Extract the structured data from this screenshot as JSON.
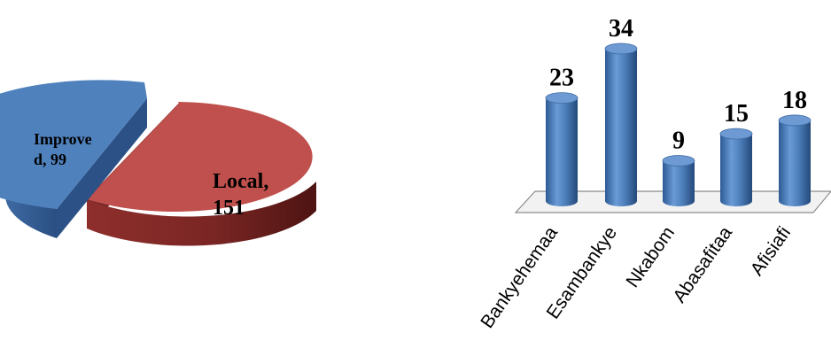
{
  "chart_data": [
    {
      "type": "pie",
      "style": "3d-exploded",
      "slices": [
        {
          "label_lines": [
            "Local,",
            "151"
          ],
          "value": 151,
          "color": "#c0504d",
          "dark": "#7a2624"
        },
        {
          "label_lines": [
            "Improve",
            "d,  99"
          ],
          "value": 99,
          "color": "#4f81bd",
          "dark": "#2f5890"
        }
      ]
    },
    {
      "type": "bar",
      "style": "3d-cylinder",
      "categories": [
        "Bankyehemaa",
        "Esambankye",
        "Nkabom",
        "Abasafitaa",
        "Afisiafi"
      ],
      "values": [
        23,
        34,
        9,
        15,
        18
      ],
      "value_labels": [
        "23",
        "34",
        "9",
        "15",
        "18"
      ],
      "color": "#4f81bd",
      "ylim": [
        0,
        34
      ]
    }
  ]
}
